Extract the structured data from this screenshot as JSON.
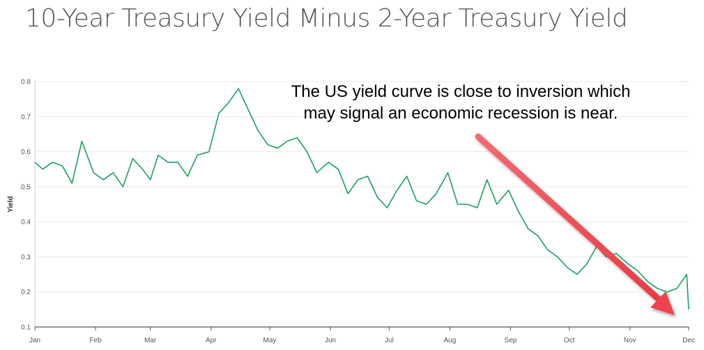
{
  "title": "10-Year Treasury Yield Minus 2-Year Treasury Yield",
  "annotation": {
    "line1": "The US yield curve is close to inversion which",
    "line2": "may signal an economic recession is near."
  },
  "colors": {
    "line": "#18a060",
    "arrow": "#f2464f",
    "grid": "#e8e8e8",
    "axis": "#555555"
  },
  "chart_data": {
    "type": "line",
    "title": "10-Year Treasury Yield Minus 2-Year Treasury Yield",
    "xlabel": "",
    "ylabel": "Yield",
    "ylim": [
      0.1,
      0.8
    ],
    "yticks": [
      "0.1",
      "0.2",
      "0.3",
      "0.4",
      "0.5",
      "0.6",
      "0.7",
      "0.8"
    ],
    "xticks": [
      "Jan",
      "Feb",
      "Mar",
      "Apr",
      "May",
      "Jun",
      "Jul",
      "Aug",
      "Sep",
      "Oct",
      "Nov",
      "Dec"
    ],
    "grid": true,
    "series": [
      {
        "name": "",
        "x": [
          "2018-01-01",
          "2018-01-05",
          "2018-01-10",
          "2018-01-15",
          "2018-01-20",
          "2018-01-25",
          "2018-01-31",
          "2018-02-05",
          "2018-02-10",
          "2018-02-15",
          "2018-02-20",
          "2018-02-25",
          "2018-03-01",
          "2018-03-05",
          "2018-03-10",
          "2018-03-15",
          "2018-03-20",
          "2018-03-25",
          "2018-03-31",
          "2018-04-05",
          "2018-04-10",
          "2018-04-15",
          "2018-04-20",
          "2018-04-25",
          "2018-04-30",
          "2018-05-05",
          "2018-05-10",
          "2018-05-15",
          "2018-05-20",
          "2018-05-25",
          "2018-05-31",
          "2018-06-05",
          "2018-06-10",
          "2018-06-15",
          "2018-06-20",
          "2018-06-25",
          "2018-06-30",
          "2018-07-05",
          "2018-07-10",
          "2018-07-15",
          "2018-07-20",
          "2018-07-25",
          "2018-07-31",
          "2018-08-05",
          "2018-08-10",
          "2018-08-15",
          "2018-08-20",
          "2018-08-25",
          "2018-08-31",
          "2018-09-05",
          "2018-09-10",
          "2018-09-15",
          "2018-09-20",
          "2018-09-25",
          "2018-09-30",
          "2018-10-05",
          "2018-10-10",
          "2018-10-15",
          "2018-10-20",
          "2018-10-25",
          "2018-10-31",
          "2018-11-05",
          "2018-11-10",
          "2018-11-15",
          "2018-11-20",
          "2018-11-25",
          "2018-11-30",
          "2018-12-01"
        ],
        "values": [
          0.57,
          0.55,
          0.57,
          0.56,
          0.51,
          0.63,
          0.54,
          0.52,
          0.54,
          0.5,
          0.58,
          0.55,
          0.52,
          0.59,
          0.57,
          0.57,
          0.53,
          0.59,
          0.6,
          0.71,
          0.74,
          0.78,
          0.72,
          0.66,
          0.62,
          0.61,
          0.63,
          0.64,
          0.6,
          0.54,
          0.57,
          0.55,
          0.48,
          0.52,
          0.53,
          0.47,
          0.44,
          0.49,
          0.53,
          0.46,
          0.45,
          0.48,
          0.54,
          0.45,
          0.45,
          0.44,
          0.52,
          0.45,
          0.49,
          0.43,
          0.38,
          0.36,
          0.32,
          0.3,
          0.27,
          0.25,
          0.28,
          0.33,
          0.3,
          0.31,
          0.28,
          0.26,
          0.23,
          0.21,
          0.2,
          0.21,
          0.25,
          0.15
        ]
      }
    ]
  }
}
